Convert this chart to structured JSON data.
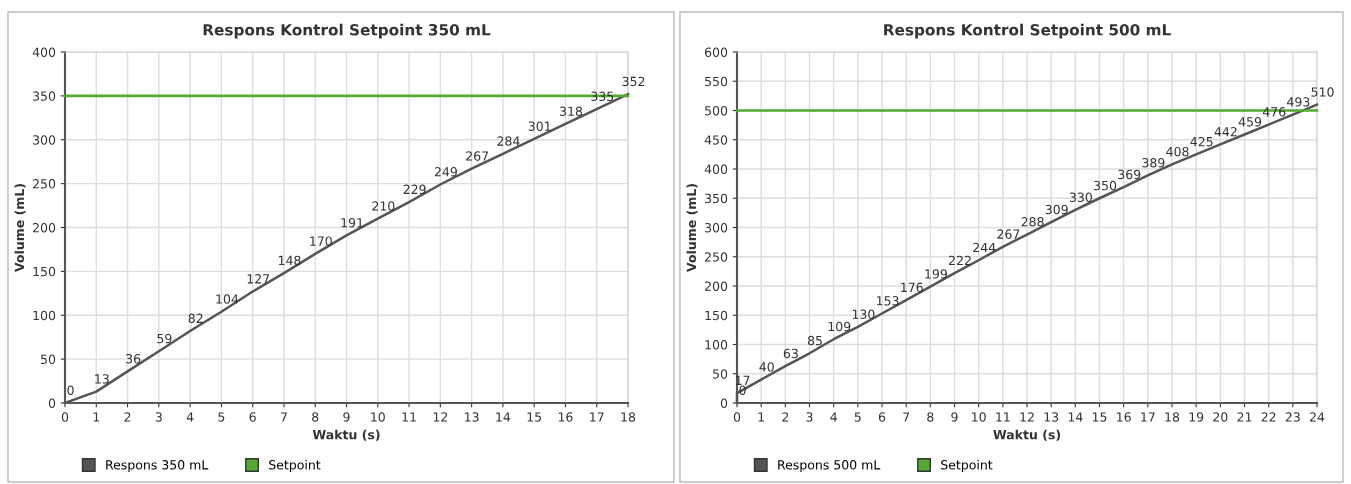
{
  "chart_data": [
    {
      "type": "line",
      "title": "Respons Kontrol Setpoint 350 mL",
      "xlabel": "Waktu (s)",
      "ylabel": "Volume (mL)",
      "xlim": [
        0,
        18
      ],
      "xticks": [
        0,
        1,
        2,
        3,
        4,
        5,
        6,
        7,
        8,
        9,
        10,
        11,
        12,
        13,
        14,
        15,
        16,
        17,
        18
      ],
      "ylim": [
        0,
        400
      ],
      "yticks": [
        0,
        50,
        100,
        150,
        200,
        250,
        300,
        350,
        400
      ],
      "grid": true,
      "legend": "bottom",
      "series": [
        {
          "name": "Respons 350 mL",
          "color": "#555555",
          "x": [
            0,
            1,
            2,
            3,
            4,
            5,
            6,
            7,
            8,
            9,
            10,
            11,
            12,
            13,
            14,
            15,
            16,
            17,
            18
          ],
          "values": [
            0,
            13,
            36,
            59,
            82,
            104,
            127,
            148,
            170,
            191,
            210,
            229,
            249,
            267,
            284,
            301,
            318,
            335,
            352
          ],
          "value_labels": [
            "0",
            "13",
            "36",
            "59",
            "82",
            "104",
            "127",
            "148",
            "170",
            "191",
            "210",
            "229",
            "249",
            "267",
            "284",
            "301",
            "318",
            "335",
            "352"
          ]
        },
        {
          "name": "Setpoint",
          "color": "#55aa33",
          "x": [
            0,
            18
          ],
          "values": [
            350,
            350
          ]
        }
      ]
    },
    {
      "type": "line",
      "title": "Respons Kontrol Setpoint 500 mL",
      "xlabel": "Waktu (s)",
      "ylabel": "Volume (mL)",
      "xlim": [
        0,
        24
      ],
      "xticks": [
        0,
        1,
        2,
        3,
        4,
        5,
        6,
        7,
        8,
        9,
        10,
        11,
        12,
        13,
        14,
        15,
        16,
        17,
        18,
        19,
        20,
        21,
        22,
        23,
        24
      ],
      "ylim": [
        0,
        600
      ],
      "yticks": [
        0,
        50,
        100,
        150,
        200,
        250,
        300,
        350,
        400,
        450,
        500,
        550,
        600
      ],
      "grid": true,
      "legend": "bottom",
      "series": [
        {
          "name": "Respons 500 mL",
          "color": "#555555",
          "x": [
            0,
            0,
            1,
            2,
            3,
            4,
            5,
            6,
            7,
            8,
            9,
            10,
            11,
            12,
            13,
            14,
            15,
            16,
            17,
            18,
            19,
            20,
            21,
            22,
            23,
            24
          ],
          "values": [
            0,
            17,
            40,
            63,
            85,
            109,
            130,
            153,
            176,
            199,
            222,
            244,
            267,
            288,
            309,
            330,
            350,
            369,
            389,
            408,
            425,
            442,
            459,
            476,
            493,
            510
          ],
          "value_labels": [
            "0",
            "17",
            "40",
            "63",
            "85",
            "109",
            "130",
            "153",
            "176",
            "199",
            "222",
            "244",
            "267",
            "288",
            "309",
            "330",
            "350",
            "369",
            "389",
            "408",
            "425",
            "442",
            "459",
            "476",
            "493",
            "510"
          ]
        },
        {
          "name": "Setpoint",
          "color": "#55aa33",
          "x": [
            0,
            24
          ],
          "values": [
            500,
            500
          ]
        }
      ]
    }
  ]
}
